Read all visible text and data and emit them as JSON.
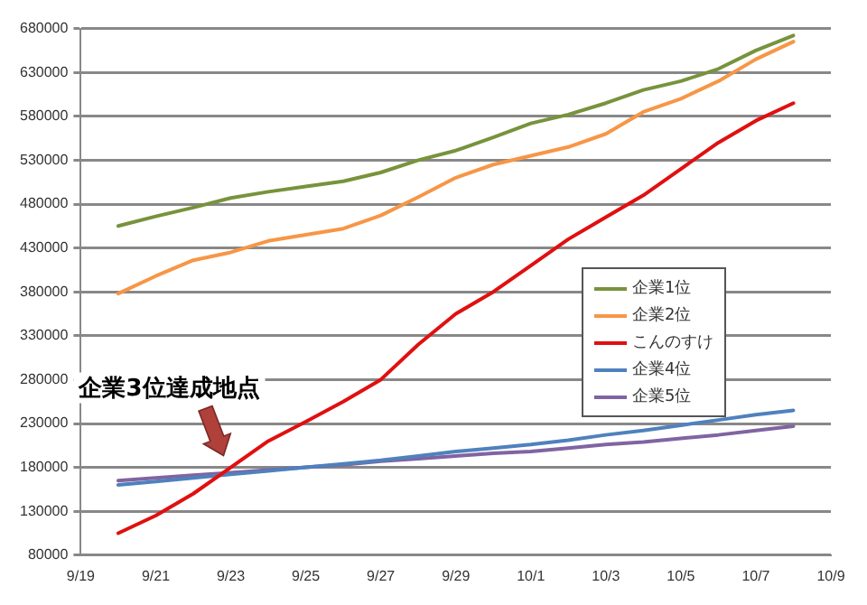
{
  "chart_data": {
    "type": "line",
    "x": [
      "--09-20",
      "--09-21",
      "--09-22",
      "--09-23",
      "--09-24",
      "--09-25",
      "--09-26",
      "--09-27",
      "--09-28",
      "--09-29",
      "--09-30",
      "--10-01",
      "--10-02",
      "--10-03",
      "--10-04",
      "--10-05",
      "--10-06",
      "--10-07",
      "--10-08"
    ],
    "series": [
      {
        "name": "企業1位",
        "color": "#77933c",
        "values": [
          455000,
          466000,
          476000,
          487000,
          494000,
          500000,
          506000,
          516000,
          530000,
          541000,
          556000,
          572000,
          582000,
          595000,
          610000,
          620000,
          634000,
          655000,
          672000
        ]
      },
      {
        "name": "企業2位",
        "color": "#f79646",
        "values": [
          378000,
          398000,
          416000,
          425000,
          438000,
          445000,
          452000,
          467000,
          488000,
          510000,
          525000,
          535000,
          545000,
          560000,
          585000,
          600000,
          620000,
          645000,
          665000
        ]
      },
      {
        "name": "こんのすけ",
        "color": "#e01010",
        "values": [
          105000,
          125000,
          150000,
          180000,
          210000,
          232000,
          255000,
          280000,
          320000,
          355000,
          380000,
          410000,
          440000,
          465000,
          490000,
          520000,
          550000,
          575000,
          595000
        ]
      },
      {
        "name": "企業4位",
        "color": "#4f81bd",
        "values": [
          160000,
          164000,
          168000,
          172000,
          176000,
          180000,
          184000,
          188000,
          193000,
          198000,
          202000,
          206000,
          211000,
          217000,
          222000,
          228000,
          234000,
          240000,
          245000
        ]
      },
      {
        "name": "企業5位",
        "color": "#8064a2",
        "values": [
          165000,
          168000,
          171000,
          174000,
          177000,
          180000,
          183000,
          187000,
          190000,
          193000,
          196000,
          198000,
          202000,
          206000,
          209000,
          213000,
          217000,
          222000,
          227000
        ]
      }
    ],
    "xlim": [
      "--09-19",
      "--10-09"
    ],
    "xticks": [
      {
        "value": "--09-19",
        "label": "9/19"
      },
      {
        "value": "--09-21",
        "label": "9/21"
      },
      {
        "value": "--09-23",
        "label": "9/23"
      },
      {
        "value": "--09-25",
        "label": "9/25"
      },
      {
        "value": "--09-27",
        "label": "9/27"
      },
      {
        "value": "--09-29",
        "label": "9/29"
      },
      {
        "value": "--10-01",
        "label": "10/1"
      },
      {
        "value": "--10-03",
        "label": "10/3"
      },
      {
        "value": "--10-05",
        "label": "10/5"
      },
      {
        "value": "--10-07",
        "label": "10/7"
      },
      {
        "value": "--10-09",
        "label": "10/9"
      }
    ],
    "ylim": [
      80000,
      680000
    ],
    "yticks": [
      80000,
      130000,
      180000,
      230000,
      280000,
      330000,
      380000,
      430000,
      480000,
      530000,
      580000,
      630000,
      680000
    ],
    "grid": "y",
    "legend": "right",
    "marker": "none",
    "line_style": "solid",
    "annotations": [
      {
        "text": "企業3位達成地点",
        "x": "--09-23",
        "y": 175000
      }
    ]
  }
}
